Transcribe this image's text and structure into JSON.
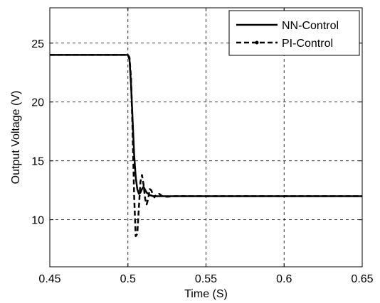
{
  "chart_data": {
    "type": "line",
    "title": "",
    "xlabel": "Time (S)",
    "ylabel": "Output Voltage (V)",
    "xlim": [
      0.45,
      0.65
    ],
    "ylim": [
      6,
      28
    ],
    "x_ticks": [
      0.45,
      0.5,
      0.55,
      0.6,
      0.65
    ],
    "x_tick_labels": [
      "0.45",
      "0.5",
      "0.55",
      "0.6",
      "0.65"
    ],
    "y_ticks": [
      10,
      15,
      20,
      25
    ],
    "y_tick_labels": [
      "10",
      "15",
      "20",
      "25"
    ],
    "grid": true,
    "legend_position": "top-right",
    "series": [
      {
        "name": "NN-Control",
        "style": "solid",
        "color": "#000000",
        "x": [
          0.45,
          0.5,
          0.501,
          0.502,
          0.503,
          0.504,
          0.505,
          0.506,
          0.507,
          0.508,
          0.509,
          0.51,
          0.512,
          0.514,
          0.516,
          0.52,
          0.525,
          0.53,
          0.55,
          0.6,
          0.65
        ],
        "y": [
          24,
          24,
          23.6,
          21.5,
          18.5,
          15.5,
          13.6,
          12.6,
          12.2,
          12.3,
          12.6,
          12.8,
          12.3,
          12.1,
          12.0,
          12.0,
          12.0,
          12.0,
          12.0,
          12.0,
          12.0
        ]
      },
      {
        "name": "PI-Control",
        "style": "dashed",
        "color": "#000000",
        "x": [
          0.45,
          0.5,
          0.501,
          0.502,
          0.503,
          0.504,
          0.505,
          0.506,
          0.507,
          0.508,
          0.509,
          0.51,
          0.511,
          0.512,
          0.513,
          0.514,
          0.515,
          0.516,
          0.517,
          0.518,
          0.52,
          0.522,
          0.525,
          0.53,
          0.55,
          0.6,
          0.65
        ],
        "y": [
          24,
          24,
          23.8,
          22.0,
          17.5,
          12.0,
          8.6,
          8.8,
          11.0,
          13.2,
          13.8,
          13.0,
          11.8,
          11.3,
          11.8,
          12.6,
          12.5,
          12.1,
          11.9,
          12.1,
          12.2,
          12.0,
          11.95,
          12.0,
          12.0,
          12.0,
          12.0
        ]
      }
    ]
  }
}
